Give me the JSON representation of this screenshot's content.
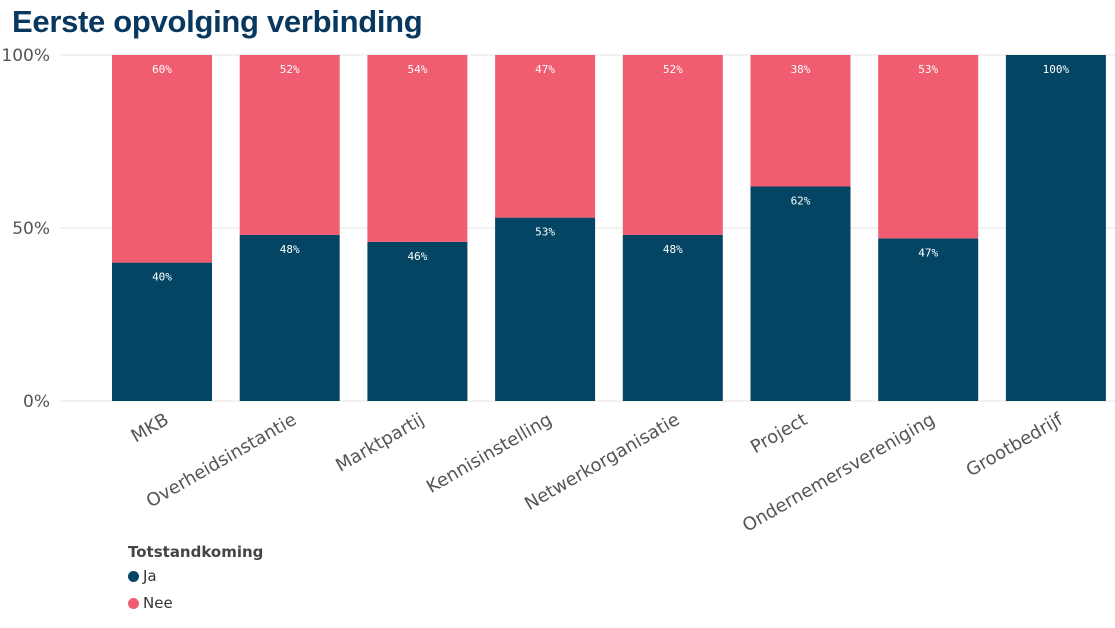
{
  "chart_data": {
    "type": "bar",
    "stacked": true,
    "title": "Eerste opvolging verbinding",
    "categories": [
      "MKB",
      "Overheidsinstantie",
      "Marktpartij",
      "Kennisinstelling",
      "Netwerkorganisatie",
      "Project",
      "Ondernemersvereniging",
      "Grootbedrijf"
    ],
    "series": [
      {
        "name": "Ja",
        "color": "#034563",
        "values": [
          40,
          48,
          46,
          53,
          48,
          62,
          47,
          100
        ]
      },
      {
        "name": "Nee",
        "color": "#f05d70",
        "values": [
          60,
          52,
          54,
          47,
          52,
          38,
          53,
          0
        ]
      }
    ],
    "yticks": [
      "0%",
      "50%",
      "100%"
    ],
    "ytick_values": [
      0,
      50,
      100
    ],
    "ylim": [
      0,
      100
    ],
    "legend_title": "Totstandkoming",
    "legend_position": "bottom-left"
  }
}
